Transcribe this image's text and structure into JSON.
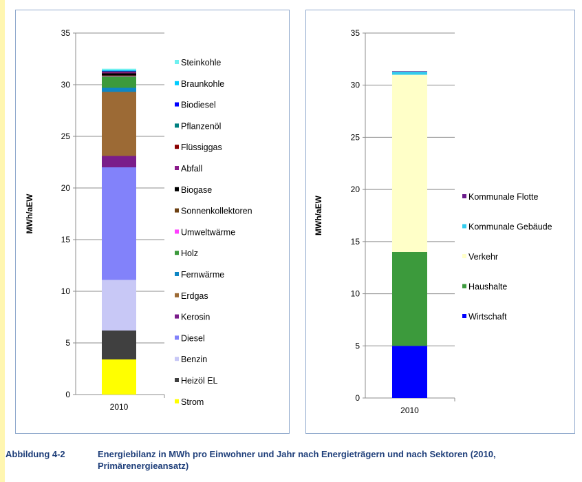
{
  "caption": {
    "label": "Abbildung 4-2",
    "text": "Energiebilanz in MWh pro Einwohner und Jahr nach Energieträgern und nach Sektoren (2010, Primärenergieansatz)"
  },
  "chart_data": [
    {
      "type": "bar",
      "stacked": true,
      "categories": [
        "2010"
      ],
      "ylabel": "MWh/aEW",
      "ylim": [
        0,
        35
      ],
      "yticks": [
        0,
        5,
        10,
        15,
        20,
        25,
        30,
        35
      ],
      "grid": true,
      "legend": "right",
      "series": [
        {
          "name": "Strom",
          "values": [
            3.4
          ],
          "color": "#ffff00"
        },
        {
          "name": "Heizöl EL",
          "values": [
            2.8
          ],
          "color": "#404040"
        },
        {
          "name": "Benzin",
          "values": [
            4.9
          ],
          "color": "#c8c8f6"
        },
        {
          "name": "Diesel",
          "values": [
            10.9
          ],
          "color": "#8282fa"
        },
        {
          "name": "Kerosin",
          "values": [
            1.1
          ],
          "color": "#7a1d8a"
        },
        {
          "name": "Erdgas",
          "values": [
            6.2
          ],
          "color": "#9c6a35"
        },
        {
          "name": "Fernwärme",
          "values": [
            0.4
          ],
          "color": "#0e86c4"
        },
        {
          "name": "Holz",
          "values": [
            1.1
          ],
          "color": "#3c9a3c"
        },
        {
          "name": "Umweltwärme",
          "values": [
            0.05
          ],
          "color": "#ff40ff"
        },
        {
          "name": "Sonnenkollektoren",
          "values": [
            0.05
          ],
          "color": "#6e4214"
        },
        {
          "name": "Biogase",
          "values": [
            0.2
          ],
          "color": "#000000"
        },
        {
          "name": "Abfall",
          "values": [
            0.1
          ],
          "color": "#8a1a8a"
        },
        {
          "name": "Flüssiggas",
          "values": [
            0.05
          ],
          "color": "#8a0000"
        },
        {
          "name": "Pflanzenöl",
          "values": [
            0.05
          ],
          "color": "#008080"
        },
        {
          "name": "Biodiesel",
          "values": [
            0.05
          ],
          "color": "#0000ff"
        },
        {
          "name": "Braunkohle",
          "values": [
            0.05
          ],
          "color": "#00ccff"
        },
        {
          "name": "Steinkohle",
          "values": [
            0.15
          ],
          "color": "#6ff0f0"
        }
      ]
    },
    {
      "type": "bar",
      "stacked": true,
      "categories": [
        "2010"
      ],
      "ylabel": "MWh/aEW",
      "ylim": [
        0,
        35
      ],
      "yticks": [
        0,
        5,
        10,
        15,
        20,
        25,
        30,
        35
      ],
      "grid": true,
      "legend": "right",
      "series": [
        {
          "name": "Wirtschaft",
          "values": [
            5.0
          ],
          "color": "#0000ff"
        },
        {
          "name": "Haushalte",
          "values": [
            9.0
          ],
          "color": "#3c9a3c"
        },
        {
          "name": "Verkehr",
          "values": [
            17.0
          ],
          "color": "#ffffc8"
        },
        {
          "name": "Kommunale Gebäude",
          "values": [
            0.3
          ],
          "color": "#33ccee"
        },
        {
          "name": "Kommunale Flotte",
          "values": [
            0.05
          ],
          "color": "#6a1a8a"
        }
      ]
    }
  ]
}
